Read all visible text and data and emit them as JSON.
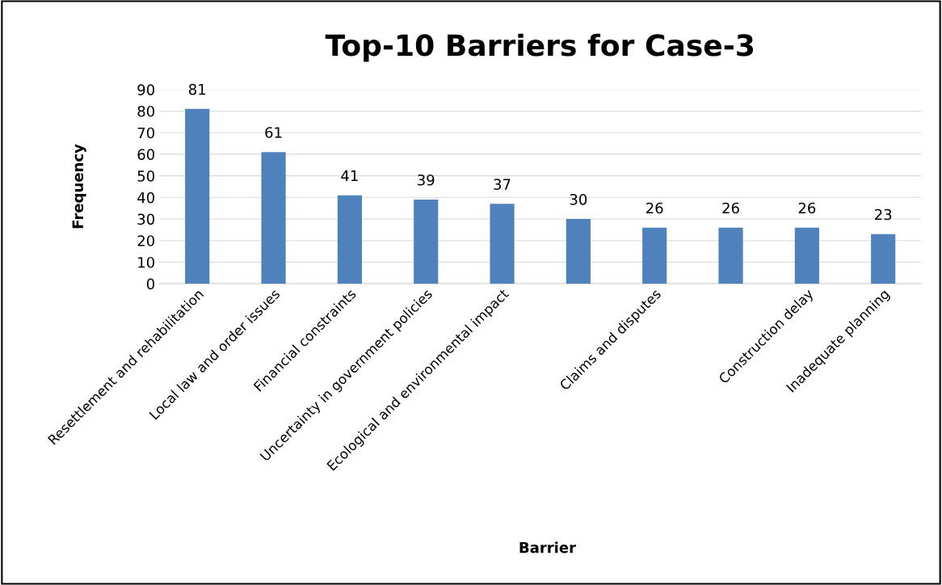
{
  "chart_data": {
    "type": "bar",
    "title": "Top-10 Barriers for Case-3",
    "xlabel": "Barrier",
    "ylabel": "Frequency",
    "categories": [
      "Resettlement and rehabilitation",
      "Local law and order issues",
      "Financial constraints",
      "Uncertainty in government policies",
      "Ecological and environmental impact",
      null,
      "Claims and disputes",
      null,
      "Construction delay",
      "Inadequate planning"
    ],
    "values": [
      81,
      61,
      41,
      39,
      37,
      30,
      26,
      26,
      26,
      23
    ],
    "color": "#4f81bd",
    "ylim": [
      0,
      90
    ],
    "yticks": [
      0,
      10,
      20,
      30,
      40,
      50,
      60,
      70,
      80,
      90
    ],
    "grid": "y",
    "data_labels": true
  }
}
